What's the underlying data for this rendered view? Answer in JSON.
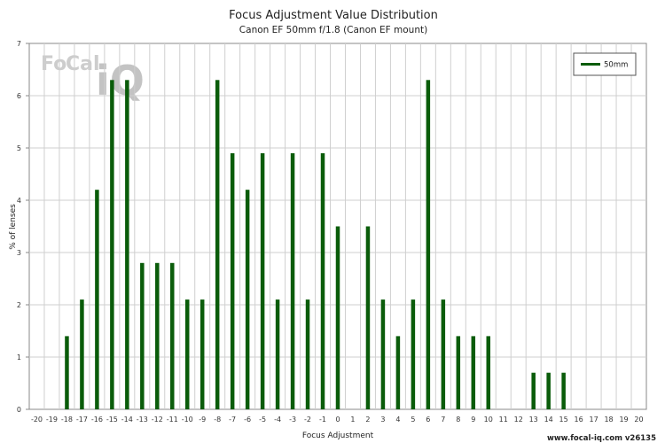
{
  "chart_data": {
    "type": "bar",
    "title": "Focus Adjustment Value Distribution",
    "subtitle": "Canon EF 50mm f/1.8 (Canon EF mount)",
    "xlabel": "Focus Adjustment",
    "ylabel": "% of lenses",
    "xlim": [
      -20,
      20
    ],
    "ylim": [
      0,
      7
    ],
    "yticks": [
      0,
      1,
      2,
      3,
      4,
      5,
      6,
      7
    ],
    "grid": true,
    "legend_position": "top-right",
    "x": [
      -20,
      -19,
      -18,
      -17,
      -16,
      -15,
      -14,
      -13,
      -12,
      -11,
      -10,
      -9,
      -8,
      -7,
      -6,
      -5,
      -4,
      -3,
      -2,
      -1,
      0,
      1,
      2,
      3,
      4,
      5,
      6,
      7,
      8,
      9,
      10,
      11,
      12,
      13,
      14,
      15,
      16,
      17,
      18,
      19,
      20
    ],
    "series": [
      {
        "name": "50mm",
        "color": "#0a5c0a",
        "values": [
          0,
          0,
          1.4,
          2.1,
          4.2,
          6.3,
          6.3,
          2.8,
          2.8,
          2.8,
          2.1,
          2.1,
          6.3,
          4.9,
          4.2,
          4.9,
          2.1,
          4.9,
          2.1,
          4.9,
          3.5,
          0,
          3.5,
          2.1,
          1.4,
          2.1,
          6.3,
          2.1,
          1.4,
          1.4,
          1.4,
          0,
          0,
          0.7,
          0.7,
          0.7,
          0,
          0,
          0,
          0,
          0
        ]
      }
    ]
  },
  "watermark": {
    "brand_fo": "Fo",
    "brand_cal": "Cal",
    "brand_iq": "iQ"
  },
  "footer": {
    "text": "www.focal-iq.com  v26135"
  }
}
